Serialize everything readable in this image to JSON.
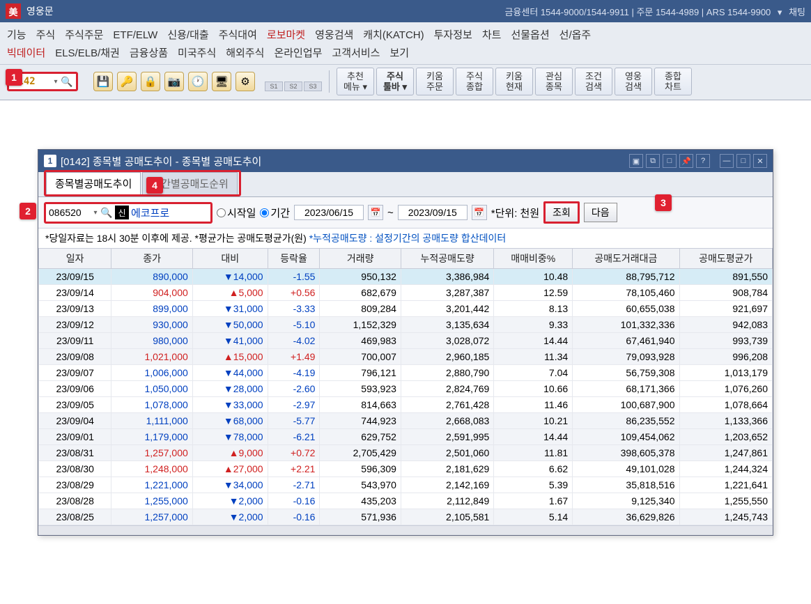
{
  "titlebar": {
    "app_name": "영웅문",
    "right_text": "금융센터 1544-9000/1544-9911  |  주문 1544-4989  |  ARS 1544-9900",
    "chat": "채팅"
  },
  "menubar": {
    "row1": [
      "기능",
      "주식",
      "주식주문",
      "ETF/ELW",
      "신용/대출",
      "주식대여",
      "로보마켓",
      "영웅검색",
      "캐치(KATCH)",
      "투자정보",
      "차트",
      "선물옵션",
      "선/옵주"
    ],
    "row2": [
      "빅데이터",
      "ELS/ELB/채권",
      "금융상품",
      "미국주식",
      "해외주식",
      "온라인업무",
      "고객서비스",
      "보기"
    ]
  },
  "codebox": {
    "value": "0142"
  },
  "stabs": [
    "S1",
    "S2",
    "S3"
  ],
  "bigbuttons": [
    {
      "l1": "추천",
      "l2": "메뉴 ▾"
    },
    {
      "l1": "주식",
      "l2": "툴바 ▾",
      "bold": true
    },
    {
      "l1": "키움",
      "l2": "주문"
    },
    {
      "l1": "주식",
      "l2": "종합"
    },
    {
      "l1": "키움",
      "l2": "현재"
    },
    {
      "l1": "관심",
      "l2": "종목"
    },
    {
      "l1": "조건",
      "l2": "검색"
    },
    {
      "l1": "영웅",
      "l2": "검색"
    },
    {
      "l1": "종합",
      "l2": "차트"
    }
  ],
  "subwindow": {
    "title": "[0142] 종목별 공매도추이 - 종목별 공매도추이",
    "tabs": {
      "active": "종목별공매도추이",
      "inactive": "기간별공매도순위"
    },
    "stock": {
      "code": "086520",
      "badge": "신",
      "name": "에코프로"
    },
    "radios": {
      "start": "시작일",
      "period": "기간"
    },
    "dates": {
      "from": "2023/06/15",
      "to": "2023/09/15"
    },
    "unit_label": "*단위: 천원",
    "query": "조회",
    "next": "다음",
    "note_a": "*당일자료는 18시 30분 이후에 제공. *평균가는 공매도평균가(원)",
    "note_b": "*누적공매도량 : 설정기간의 공매도량 합산데이터",
    "columns": [
      "일자",
      "종가",
      "대비",
      "등락율",
      "거래량",
      "누적공매도량",
      "매매비중%",
      "공매도거래대금",
      "공매도평균가"
    ],
    "rows": [
      {
        "d": "23/09/15",
        "close": "890,000",
        "dir": "down",
        "diff": "14,000",
        "pct": "-1.55",
        "vol": "950,132",
        "cum": "3,386,984",
        "ratio": "10.48",
        "amt": "88,795,712",
        "avg": "891,550",
        "sel": true
      },
      {
        "d": "23/09/14",
        "close": "904,000",
        "dir": "up",
        "diff": "5,000",
        "pct": "+0.56",
        "vol": "682,679",
        "cum": "3,287,387",
        "ratio": "12.59",
        "amt": "78,105,460",
        "avg": "908,784"
      },
      {
        "d": "23/09/13",
        "close": "899,000",
        "dir": "down",
        "diff": "31,000",
        "pct": "-3.33",
        "vol": "809,284",
        "cum": "3,201,442",
        "ratio": "8.13",
        "amt": "60,655,038",
        "avg": "921,697"
      },
      {
        "d": "23/09/12",
        "close": "930,000",
        "dir": "down",
        "diff": "50,000",
        "pct": "-5.10",
        "vol": "1,152,329",
        "cum": "3,135,634",
        "ratio": "9.33",
        "amt": "101,332,336",
        "avg": "942,083",
        "alt": true
      },
      {
        "d": "23/09/11",
        "close": "980,000",
        "dir": "down",
        "diff": "41,000",
        "pct": "-4.02",
        "vol": "469,983",
        "cum": "3,028,072",
        "ratio": "14.44",
        "amt": "67,461,940",
        "avg": "993,739",
        "alt": true
      },
      {
        "d": "23/09/08",
        "close": "1,021,000",
        "dir": "up",
        "diff": "15,000",
        "pct": "+1.49",
        "vol": "700,007",
        "cum": "2,960,185",
        "ratio": "11.34",
        "amt": "79,093,928",
        "avg": "996,208",
        "alt": true
      },
      {
        "d": "23/09/07",
        "close": "1,006,000",
        "dir": "down",
        "diff": "44,000",
        "pct": "-4.19",
        "vol": "796,121",
        "cum": "2,880,790",
        "ratio": "7.04",
        "amt": "56,759,308",
        "avg": "1,013,179"
      },
      {
        "d": "23/09/06",
        "close": "1,050,000",
        "dir": "down",
        "diff": "28,000",
        "pct": "-2.60",
        "vol": "593,923",
        "cum": "2,824,769",
        "ratio": "10.66",
        "amt": "68,171,366",
        "avg": "1,076,260"
      },
      {
        "d": "23/09/05",
        "close": "1,078,000",
        "dir": "down",
        "diff": "33,000",
        "pct": "-2.97",
        "vol": "814,663",
        "cum": "2,761,428",
        "ratio": "11.46",
        "amt": "100,687,900",
        "avg": "1,078,664"
      },
      {
        "d": "23/09/04",
        "close": "1,111,000",
        "dir": "down",
        "diff": "68,000",
        "pct": "-5.77",
        "vol": "744,923",
        "cum": "2,668,083",
        "ratio": "10.21",
        "amt": "86,235,552",
        "avg": "1,133,366",
        "alt": true
      },
      {
        "d": "23/09/01",
        "close": "1,179,000",
        "dir": "down",
        "diff": "78,000",
        "pct": "-6.21",
        "vol": "629,752",
        "cum": "2,591,995",
        "ratio": "14.44",
        "amt": "109,454,062",
        "avg": "1,203,652",
        "alt": true
      },
      {
        "d": "23/08/31",
        "close": "1,257,000",
        "dir": "up",
        "diff": "9,000",
        "pct": "+0.72",
        "vol": "2,705,429",
        "cum": "2,501,060",
        "ratio": "11.81",
        "amt": "398,605,378",
        "avg": "1,247,861",
        "alt": true
      },
      {
        "d": "23/08/30",
        "close": "1,248,000",
        "dir": "up",
        "diff": "27,000",
        "pct": "+2.21",
        "vol": "596,309",
        "cum": "2,181,629",
        "ratio": "6.62",
        "amt": "49,101,028",
        "avg": "1,244,324"
      },
      {
        "d": "23/08/29",
        "close": "1,221,000",
        "dir": "down",
        "diff": "34,000",
        "pct": "-2.71",
        "vol": "543,970",
        "cum": "2,142,169",
        "ratio": "5.39",
        "amt": "35,818,516",
        "avg": "1,221,641"
      },
      {
        "d": "23/08/28",
        "close": "1,255,000",
        "dir": "down",
        "diff": "2,000",
        "pct": "-0.16",
        "vol": "435,203",
        "cum": "2,112,849",
        "ratio": "1.67",
        "amt": "9,125,340",
        "avg": "1,255,550"
      },
      {
        "d": "23/08/25",
        "close": "1,257,000",
        "dir": "down",
        "diff": "2,000",
        "pct": "-0.16",
        "vol": "571,936",
        "cum": "2,105,581",
        "ratio": "5.14",
        "amt": "36,629,826",
        "avg": "1,245,743",
        "alt": true
      }
    ]
  },
  "callouts": {
    "1": "1",
    "2": "2",
    "3": "3",
    "4": "4"
  },
  "colors": {
    "title_bg": "#3a5a8a",
    "accent_red": "#d82030",
    "up": "#d02020",
    "down": "#0040c0",
    "grid_header": "#f0f2f6",
    "sel_row": "#d6ecf6",
    "alt_row": "#f2f4f8"
  }
}
